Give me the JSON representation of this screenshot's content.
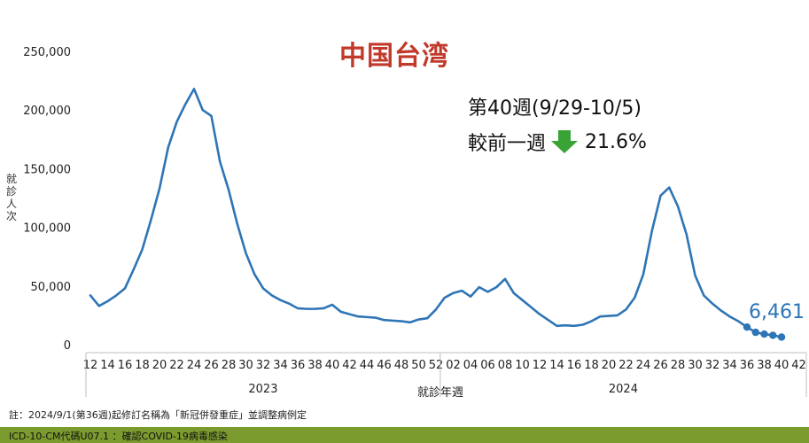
{
  "title": "中国台湾",
  "week_info": "第40週(9/29-10/5)",
  "compare": {
    "label": "較前一週",
    "value": "21.6%",
    "direction_icon": "down-arrow-icon",
    "arrow_color": "#3aa335"
  },
  "footnote": "註：2024/9/1(第36週)起修訂名稱為「新冠併發重症」並調整病例定",
  "footer_note": "ICD-10-CM代碼U07.1 ：確認COVID-19病毒感染",
  "colors": {
    "line": "#2e75b6",
    "title": "#c0392b",
    "footer_bar": "#7c9b2f"
  },
  "chart_data": {
    "type": "line",
    "title": "中国台湾",
    "ylabel": "就診人次",
    "xlabel": "就診年週",
    "ylim": [
      0,
      250000
    ],
    "yticks": [
      "0",
      "50,000",
      "100,000",
      "150,000",
      "200,000",
      "250,000"
    ],
    "ytick_values": [
      0,
      50000,
      100000,
      150000,
      200000,
      250000
    ],
    "xtick_labels": [
      "12",
      "14",
      "16",
      "18",
      "20",
      "22",
      "24",
      "26",
      "28",
      "30",
      "32",
      "34",
      "36",
      "38",
      "40",
      "42",
      "44",
      "46",
      "48",
      "50",
      "52",
      "02",
      "04",
      "06",
      "08",
      "10",
      "12",
      "14",
      "16",
      "18",
      "20",
      "22",
      "24",
      "26",
      "28",
      "30",
      "32",
      "34",
      "36",
      "38",
      "40",
      "42"
    ],
    "year_groups": [
      {
        "label": "2023",
        "start": 0,
        "end": 41
      },
      {
        "label": "2024",
        "start": 41,
        "end": 81
      }
    ],
    "grid": false,
    "last_value_label": "6,461",
    "highlight_last_points": 5,
    "series": [
      {
        "values": [
          42000,
          33000,
          37000,
          42000,
          48000,
          64000,
          81000,
          106000,
          133000,
          168000,
          190000,
          205000,
          218000,
          200000,
          195000,
          156000,
          132000,
          103000,
          78000,
          60000,
          48000,
          42000,
          38000,
          35000,
          31000,
          30500,
          30500,
          31000,
          34000,
          28000,
          26000,
          24000,
          23500,
          23000,
          21000,
          20500,
          20000,
          19000,
          21500,
          22500,
          30000,
          40000,
          44000,
          46000,
          41000,
          49000,
          45000,
          49000,
          56000,
          44000,
          38000,
          32000,
          26000,
          21000,
          16000,
          16500,
          16000,
          17000,
          20000,
          24000,
          24500,
          25000,
          30000,
          40000,
          60000,
          97000,
          127000,
          134000,
          118000,
          94000,
          59000,
          42000,
          35000,
          29000,
          24000,
          20000,
          15000,
          10500,
          9000,
          8000,
          6461
        ]
      }
    ]
  }
}
